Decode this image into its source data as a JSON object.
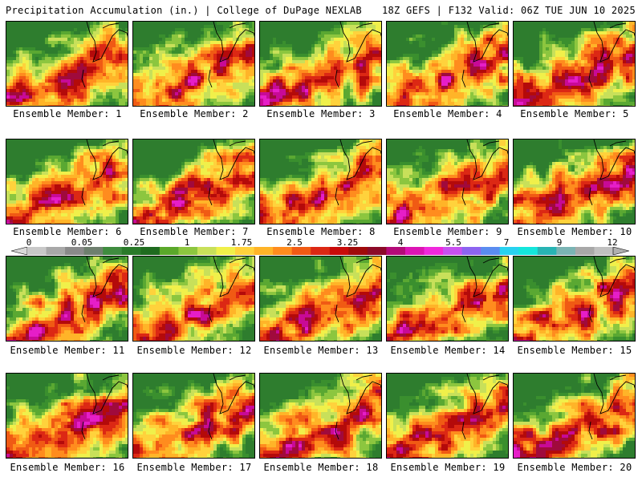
{
  "header": {
    "title_left": "Precipitation Accumulation (in.) | College of DuPage NEXLAB",
    "title_right": "18Z GEFS | F132 Valid: 06Z TUE JUN 10 2025"
  },
  "colorbar": {
    "tick_labels": [
      "0",
      "0.05",
      "0.25",
      "1",
      "1.75",
      "2.5",
      "3.25",
      "4",
      "5.5",
      "7",
      "9",
      "12"
    ],
    "colors": [
      "#c8c8c8",
      "#a8a8a8",
      "#8a8a8a",
      "#6e7f6e",
      "#3f8c3f",
      "#2a7a2a",
      "#1f6b1f",
      "#5aa82a",
      "#8cc63f",
      "#c8e05a",
      "#f0f04a",
      "#ffd23c",
      "#ffb428",
      "#ff8c1e",
      "#f05a14",
      "#dc2814",
      "#c80a0a",
      "#a00a0a",
      "#8c0a28",
      "#b40a78",
      "#dc14b4",
      "#f028dc",
      "#c850f0",
      "#8c64f0",
      "#5a8cf0",
      "#28d2f0",
      "#14e6dc",
      "#28b4b4",
      "#7ab4b4",
      "#a8a8a8",
      "#c0c0c0"
    ]
  },
  "members": [
    {
      "label": "Ensemble Member: 1",
      "num": 1
    },
    {
      "label": "Ensemble Member: 2",
      "num": 2
    },
    {
      "label": "Ensemble Member: 3",
      "num": 3
    },
    {
      "label": "Ensemble Member: 4",
      "num": 4
    },
    {
      "label": "Ensemble Member: 5",
      "num": 5
    },
    {
      "label": "Ensemble Member: 6",
      "num": 6
    },
    {
      "label": "Ensemble Member: 7",
      "num": 7
    },
    {
      "label": "Ensemble Member: 8",
      "num": 8
    },
    {
      "label": "Ensemble Member: 9",
      "num": 9
    },
    {
      "label": "Ensemble Member: 10",
      "num": 10
    },
    {
      "label": "Ensemble Member: 11",
      "num": 11
    },
    {
      "label": "Ensemble Member: 12",
      "num": 12
    },
    {
      "label": "Ensemble Member: 13",
      "num": 13
    },
    {
      "label": "Ensemble Member: 14",
      "num": 14
    },
    {
      "label": "Ensemble Member: 15",
      "num": 15
    },
    {
      "label": "Ensemble Member: 16",
      "num": 16
    },
    {
      "label": "Ensemble Member: 17",
      "num": 17
    },
    {
      "label": "Ensemble Member: 18",
      "num": 18
    },
    {
      "label": "Ensemble Member: 19",
      "num": 19
    },
    {
      "label": "Ensemble Member: 20",
      "num": 20
    }
  ]
}
